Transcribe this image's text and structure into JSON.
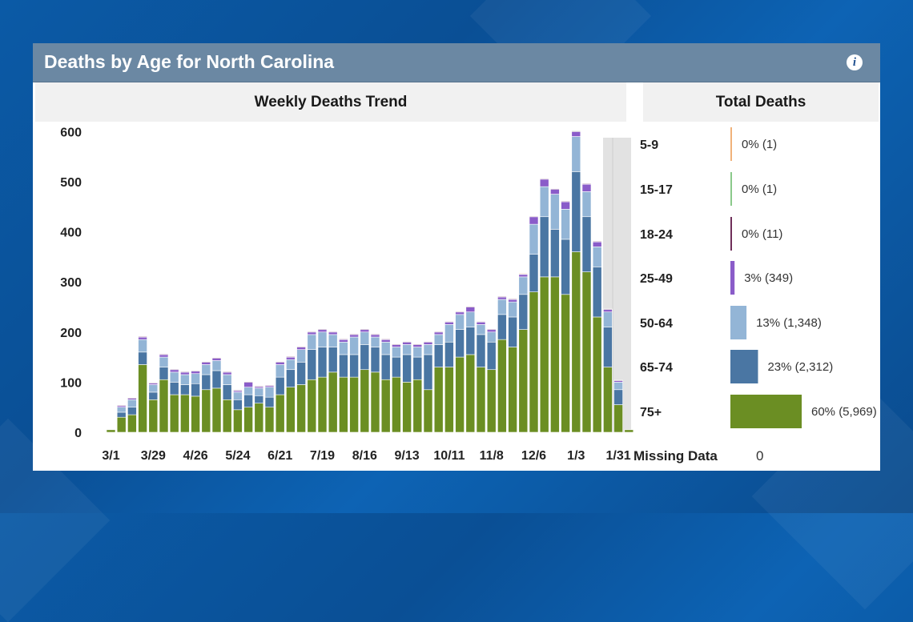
{
  "panel": {
    "title": "Deaths by Age for North Carolina",
    "info_icon": "info-icon"
  },
  "chart_data": [
    {
      "type": "bar",
      "stacked": true,
      "title": "Weekly Deaths Trend",
      "ylim": [
        0,
        620
      ],
      "yticks": [
        0,
        100,
        200,
        300,
        400,
        500,
        600
      ],
      "xtick_labels": [
        "3/1",
        "3/29",
        "4/26",
        "5/24",
        "6/21",
        "7/19",
        "8/16",
        "9/13",
        "10/11",
        "11/8",
        "12/6",
        "1/3",
        "1/31"
      ],
      "xtick_indices": [
        0,
        4,
        8,
        12,
        16,
        20,
        24,
        28,
        32,
        36,
        40,
        44,
        48
      ],
      "series": [
        {
          "name": "75+",
          "color": "#6b8e23",
          "values": [
            5,
            30,
            35,
            135,
            65,
            105,
            75,
            75,
            72,
            85,
            88,
            65,
            45,
            50,
            58,
            50,
            75,
            90,
            95,
            105,
            110,
            120,
            110,
            110,
            125,
            120,
            105,
            110,
            100,
            105,
            85,
            130,
            130,
            150,
            155,
            130,
            125,
            185,
            170,
            205,
            280,
            310,
            310,
            275,
            360,
            320,
            230,
            130,
            55,
            5
          ]
        },
        {
          "name": "65-74",
          "color": "#4a76a3",
          "values": [
            0,
            10,
            15,
            25,
            15,
            25,
            25,
            20,
            25,
            30,
            35,
            30,
            20,
            25,
            15,
            20,
            35,
            35,
            45,
            60,
            60,
            50,
            45,
            45,
            50,
            50,
            50,
            40,
            55,
            45,
            70,
            45,
            50,
            55,
            55,
            65,
            55,
            50,
            60,
            70,
            75,
            120,
            95,
            110,
            160,
            110,
            100,
            80,
            30,
            0
          ]
        },
        {
          "name": "50-64",
          "color": "#93b5d6",
          "values": [
            0,
            10,
            15,
            25,
            15,
            20,
            20,
            20,
            20,
            20,
            20,
            20,
            15,
            15,
            15,
            20,
            25,
            20,
            25,
            30,
            30,
            25,
            25,
            35,
            25,
            20,
            25,
            20,
            20,
            20,
            20,
            20,
            35,
            30,
            30,
            20,
            20,
            30,
            30,
            35,
            60,
            60,
            70,
            60,
            70,
            50,
            40,
            30,
            15,
            0
          ]
        },
        {
          "name": "25-49",
          "color": "#8a5cc9",
          "values": [
            0,
            3,
            3,
            5,
            3,
            5,
            5,
            5,
            5,
            5,
            5,
            5,
            3,
            10,
            3,
            3,
            5,
            5,
            5,
            5,
            5,
            5,
            5,
            5,
            5,
            5,
            5,
            5,
            5,
            5,
            5,
            5,
            5,
            5,
            10,
            5,
            5,
            5,
            5,
            5,
            15,
            15,
            10,
            15,
            10,
            15,
            10,
            5,
            3,
            0
          ]
        },
        {
          "name": "18-24",
          "color": "#6f2f5a",
          "values": [
            0,
            1,
            1,
            1,
            1,
            1,
            1,
            1,
            1,
            1,
            1,
            1,
            1,
            1,
            1,
            1,
            1,
            1,
            1,
            1,
            1,
            1,
            1,
            1,
            1,
            1,
            1,
            1,
            1,
            1,
            1,
            1,
            1,
            1,
            1,
            1,
            1,
            1,
            1,
            1,
            1,
            1,
            1,
            1,
            1,
            1,
            1,
            1,
            1,
            0
          ]
        },
        {
          "name": "15-17",
          "color": "#8bc98b",
          "values": [
            0,
            0,
            0,
            0,
            0,
            0,
            0,
            0,
            0,
            0,
            0,
            0,
            0,
            0,
            0,
            0,
            0,
            0,
            0,
            0,
            0,
            0,
            0,
            0,
            0,
            0,
            0,
            0,
            0,
            0,
            0,
            0,
            0,
            0,
            0,
            0,
            0,
            0,
            0,
            0,
            0,
            0,
            0,
            0,
            1,
            0,
            0,
            0,
            0,
            0
          ]
        },
        {
          "name": "5-9",
          "color": "#f0b27a",
          "values": [
            0,
            0,
            0,
            0,
            0,
            0,
            0,
            0,
            0,
            0,
            0,
            0,
            0,
            0,
            0,
            0,
            0,
            0,
            0,
            0,
            0,
            0,
            0,
            0,
            0,
            0,
            0,
            0,
            0,
            0,
            0,
            0,
            0,
            0,
            0,
            0,
            0,
            0,
            0,
            1,
            0,
            0,
            0,
            0,
            0,
            0,
            0,
            0,
            0,
            0
          ]
        }
      ],
      "incomplete_region_color": "#e2e2e2"
    },
    {
      "type": "bar",
      "orientation": "horizontal",
      "title": "Total Deaths",
      "categories": [
        "5-9",
        "15-17",
        "18-24",
        "25-49",
        "50-64",
        "65-74",
        "75+"
      ],
      "values": [
        1,
        1,
        11,
        349,
        1348,
        2312,
        5969
      ],
      "labels": [
        "0% (1)",
        "0% (1)",
        "0% (11)",
        "3% (349)",
        "13% (1,348)",
        "23% (2,312)",
        "60% (5,969)"
      ],
      "colors": [
        "#f0b27a",
        "#8bc98b",
        "#6f2f5a",
        "#8a5cc9",
        "#93b5d6",
        "#4a76a3",
        "#6b8e23"
      ],
      "missing_label": "Missing Data",
      "missing_value": "0"
    }
  ]
}
